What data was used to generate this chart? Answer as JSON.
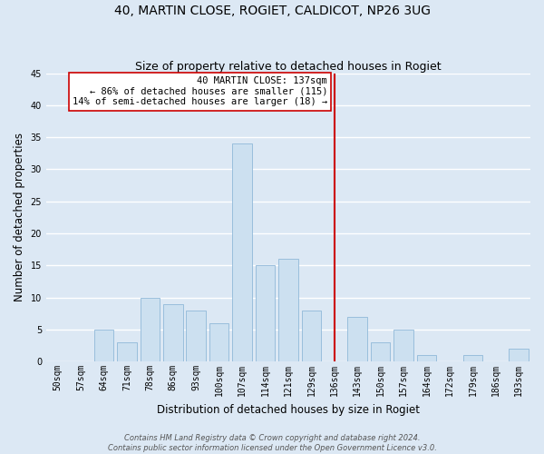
{
  "title": "40, MARTIN CLOSE, ROGIET, CALDICOT, NP26 3UG",
  "subtitle": "Size of property relative to detached houses in Rogiet",
  "xlabel": "Distribution of detached houses by size in Rogiet",
  "ylabel": "Number of detached properties",
  "bin_labels": [
    "50sqm",
    "57sqm",
    "64sqm",
    "71sqm",
    "78sqm",
    "86sqm",
    "93sqm",
    "100sqm",
    "107sqm",
    "114sqm",
    "121sqm",
    "129sqm",
    "136sqm",
    "143sqm",
    "150sqm",
    "157sqm",
    "164sqm",
    "172sqm",
    "179sqm",
    "186sqm",
    "193sqm"
  ],
  "counts": [
    0,
    0,
    5,
    3,
    10,
    9,
    8,
    6,
    34,
    15,
    16,
    8,
    0,
    7,
    3,
    5,
    1,
    0,
    1,
    0,
    2
  ],
  "bar_color": "#cce0f0",
  "bar_edge_color": "#90b8d8",
  "ylim": [
    0,
    45
  ],
  "yticks": [
    0,
    5,
    10,
    15,
    20,
    25,
    30,
    35,
    40,
    45
  ],
  "vline_idx": 12,
  "vline_color": "#cc0000",
  "annotation_title": "40 MARTIN CLOSE: 137sqm",
  "annotation_line1": "← 86% of detached houses are smaller (115)",
  "annotation_line2": "14% of semi-detached houses are larger (18) →",
  "annotation_box_color": "#ffffff",
  "annotation_box_edge": "#cc0000",
  "footer1": "Contains HM Land Registry data © Crown copyright and database right 2024.",
  "footer2": "Contains public sector information licensed under the Open Government Licence v3.0.",
  "background_color": "#dce8f4",
  "plot_background_color": "#dce8f4",
  "grid_color": "#ffffff",
  "title_fontsize": 10,
  "subtitle_fontsize": 9,
  "axis_label_fontsize": 8.5,
  "tick_fontsize": 7,
  "footer_fontsize": 6,
  "annotation_fontsize": 7.5
}
